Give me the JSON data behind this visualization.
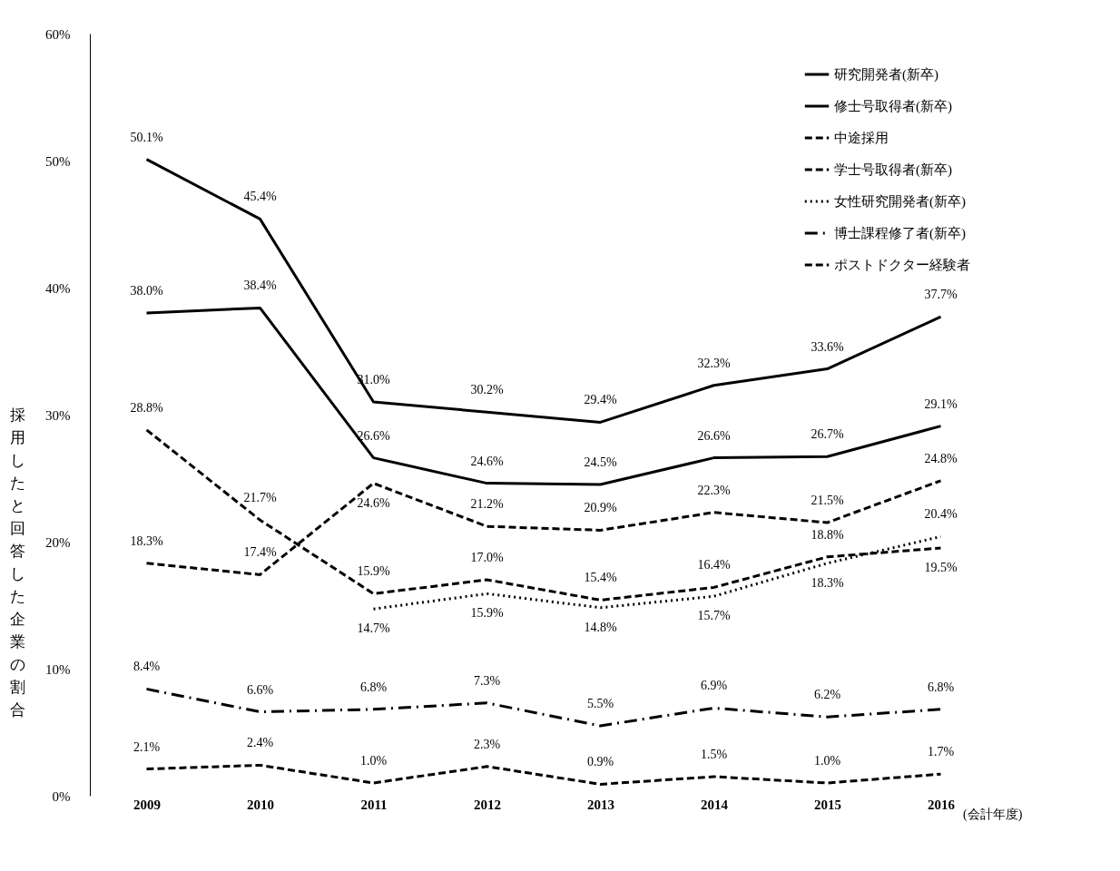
{
  "chart_data": {
    "type": "line",
    "ylabel": "採用したと回答した企業の割合",
    "xlabel": "(会計年度)",
    "categories": [
      "2009",
      "2010",
      "2011",
      "2012",
      "2013",
      "2014",
      "2015",
      "2016"
    ],
    "ylim": [
      0,
      60
    ],
    "yticks": [
      {
        "value": 0,
        "label": "0%"
      },
      {
        "value": 10,
        "label": "10%"
      },
      {
        "value": 20,
        "label": "20%"
      },
      {
        "value": 30,
        "label": "30%"
      },
      {
        "value": 40,
        "label": "40%"
      },
      {
        "value": 50,
        "label": "50%"
      },
      {
        "value": 60,
        "label": "60%"
      }
    ],
    "grid": false,
    "legend": "top right",
    "marker": "none",
    "series": [
      {
        "name": "研究開発者(新卒)",
        "color": "#000000",
        "line_style": "solid",
        "values": [
          50.1,
          45.4,
          31.0,
          30.2,
          29.4,
          32.3,
          33.6,
          37.7
        ],
        "value_labels": [
          "50.1%",
          "45.4%",
          "31.0%",
          "30.2%",
          "29.4%",
          "32.3%",
          "33.6%",
          "37.7%"
        ]
      },
      {
        "name": "修士号取得者(新卒)",
        "color": "#000000",
        "line_style": "solid",
        "values": [
          38.0,
          38.4,
          26.6,
          24.6,
          24.5,
          26.6,
          26.7,
          29.1
        ],
        "value_labels": [
          "38.0%",
          "38.4%",
          "26.6%",
          "24.6%",
          "24.5%",
          "26.6%",
          "26.7%",
          "29.1%"
        ]
      },
      {
        "name": "中途採用",
        "color": "#000000",
        "line_style": "dashed",
        "values": [
          18.3,
          17.4,
          24.6,
          21.2,
          20.9,
          22.3,
          21.5,
          24.8
        ],
        "value_labels": [
          "18.3%",
          "17.4%",
          "24.6%",
          "21.2%",
          "20.9%",
          "22.3%",
          "21.5%",
          "24.8%"
        ]
      },
      {
        "name": "学士号取得者(新卒)",
        "color": "#000000",
        "line_style": "dashed",
        "values": [
          28.8,
          21.7,
          15.9,
          17.0,
          15.4,
          16.4,
          18.8,
          19.5
        ],
        "value_labels": [
          "28.8%",
          "21.7%",
          "15.9%",
          "17.0%",
          "15.4%",
          "16.4%",
          "18.8%",
          "19.5%"
        ]
      },
      {
        "name": "女性研究開発者(新卒)",
        "color": "#000000",
        "line_style": "dotted",
        "values": [
          null,
          null,
          14.7,
          15.9,
          14.8,
          15.7,
          18.3,
          20.4
        ],
        "value_labels": [
          null,
          null,
          "14.7%",
          "15.9%",
          "14.8%",
          "15.7%",
          "18.3%",
          "20.4%"
        ]
      },
      {
        "name": "博士課程修了者(新卒)",
        "color": "#000000",
        "line_style": "dashdot",
        "values": [
          8.4,
          6.6,
          6.8,
          7.3,
          5.5,
          6.9,
          6.2,
          6.8
        ],
        "value_labels": [
          "8.4%",
          "6.6%",
          "6.8%",
          "7.3%",
          "5.5%",
          "6.9%",
          "6.2%",
          "6.8%"
        ]
      },
      {
        "name": "ポストドクター経験者",
        "color": "#000000",
        "line_style": "dashed",
        "values": [
          2.1,
          2.4,
          1.0,
          2.3,
          0.9,
          1.5,
          1.0,
          1.7
        ],
        "value_labels": [
          "2.1%",
          "2.4%",
          "1.0%",
          "2.3%",
          "0.9%",
          "1.5%",
          "1.0%",
          "1.7%"
        ]
      }
    ]
  }
}
